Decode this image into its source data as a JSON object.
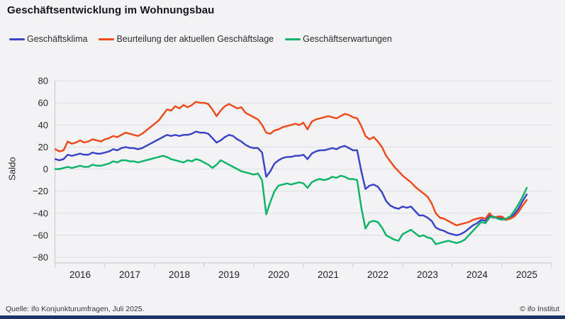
{
  "title": "Geschäftsentwicklung im Wohnungsbau",
  "footer": {
    "source": "Quelle: ifo Konjunkturumfragen,  Juli 2025.",
    "copyright": "© ifo Institut"
  },
  "brand_bar_color": "#1c3566",
  "chart_data": {
    "type": "line",
    "title": "Geschäftsentwicklung im Wohnungsbau",
    "xlabel": "",
    "ylabel": "Saldo",
    "ylim": [
      -80,
      80
    ],
    "ytick_step": 20,
    "grid": true,
    "legend_position": "top",
    "frequency": "monthly",
    "x_start": "2016-01",
    "x_end": "2025-07",
    "x_axis_end": "2026-01",
    "x_tick_labels": [
      "2016",
      "2017",
      "2018",
      "2019",
      "2020",
      "2021",
      "2022",
      "2023",
      "2024",
      "2025"
    ],
    "series": [
      {
        "name": "Geschäftsklima",
        "color": "#3d45c6",
        "values": [
          9,
          8,
          9,
          13,
          12,
          13,
          14,
          13,
          13,
          15,
          14,
          14,
          15,
          16,
          18,
          17,
          19,
          20,
          19,
          19,
          18,
          19,
          21,
          23,
          25,
          27,
          29,
          31,
          30,
          31,
          30,
          31,
          31,
          32,
          34,
          33,
          33,
          32,
          28,
          24,
          26,
          29,
          31,
          30,
          27,
          25,
          22,
          20,
          19,
          19,
          15,
          -7,
          -2,
          5,
          8,
          10,
          11,
          11,
          12,
          12,
          13,
          9,
          14,
          16,
          17,
          17,
          18,
          19,
          18,
          20,
          21,
          19,
          17,
          17,
          -2,
          -18,
          -15,
          -14,
          -16,
          -21,
          -29,
          -33,
          -35,
          -36,
          -34,
          -35,
          -34,
          -38,
          -42,
          -42,
          -44,
          -47,
          -53,
          -55,
          -56,
          -58,
          -59,
          -60,
          -59,
          -57,
          -54,
          -51,
          -49,
          -46,
          -47,
          -42,
          -44,
          -44,
          -45,
          -46,
          -44,
          -41,
          -36,
          -29,
          -23
        ]
      },
      {
        "name": "Beurteilung der aktuellen Geschäftslage",
        "color": "#ee4c1e",
        "values": [
          18,
          16,
          17,
          25,
          23,
          24,
          26,
          24,
          25,
          27,
          26,
          25,
          27,
          28,
          30,
          29,
          31,
          33,
          32,
          31,
          30,
          32,
          35,
          38,
          41,
          44,
          49,
          54,
          53,
          57,
          55,
          58,
          56,
          58,
          61,
          60,
          60,
          59,
          54,
          48,
          53,
          57,
          59,
          57,
          55,
          56,
          51,
          49,
          47,
          45,
          40,
          33,
          32,
          35,
          36,
          38,
          39,
          40,
          41,
          40,
          42,
          36,
          43,
          45,
          46,
          47,
          48,
          47,
          46,
          48,
          50,
          49,
          47,
          46,
          39,
          30,
          27,
          29,
          25,
          20,
          12,
          7,
          2,
          -2,
          -6,
          -9,
          -12,
          -16,
          -19,
          -22,
          -25,
          -31,
          -40,
          -44,
          -45,
          -47,
          -49,
          -51,
          -50,
          -49,
          -48,
          -46,
          -45,
          -44,
          -45,
          -40,
          -44,
          -43,
          -43,
          -46,
          -45,
          -43,
          -39,
          -33,
          -28
        ]
      },
      {
        "name": "Geschäftserwartungen",
        "color": "#0fb469",
        "values": [
          0,
          0,
          1,
          2,
          1,
          2,
          3,
          2,
          2,
          4,
          3,
          3,
          4,
          5,
          7,
          6,
          8,
          8,
          7,
          7,
          6,
          7,
          8,
          9,
          10,
          11,
          12,
          11,
          9,
          8,
          7,
          6,
          8,
          7,
          9,
          8,
          6,
          4,
          1,
          4,
          8,
          6,
          4,
          2,
          0,
          -2,
          -3,
          -4,
          -5,
          -4,
          -10,
          -41,
          -30,
          -20,
          -15,
          -14,
          -13,
          -14,
          -13,
          -12,
          -13,
          -17,
          -12,
          -10,
          -9,
          -10,
          -9,
          -7,
          -8,
          -6,
          -7,
          -9,
          -9,
          -10,
          -35,
          -54,
          -48,
          -47,
          -48,
          -53,
          -60,
          -62,
          -64,
          -65,
          -59,
          -57,
          -55,
          -58,
          -61,
          -60,
          -62,
          -63,
          -68,
          -67,
          -66,
          -65,
          -66,
          -67,
          -66,
          -64,
          -60,
          -56,
          -52,
          -48,
          -49,
          -44,
          -43,
          -45,
          -46,
          -45,
          -43,
          -38,
          -32,
          -25,
          -17
        ]
      }
    ]
  }
}
